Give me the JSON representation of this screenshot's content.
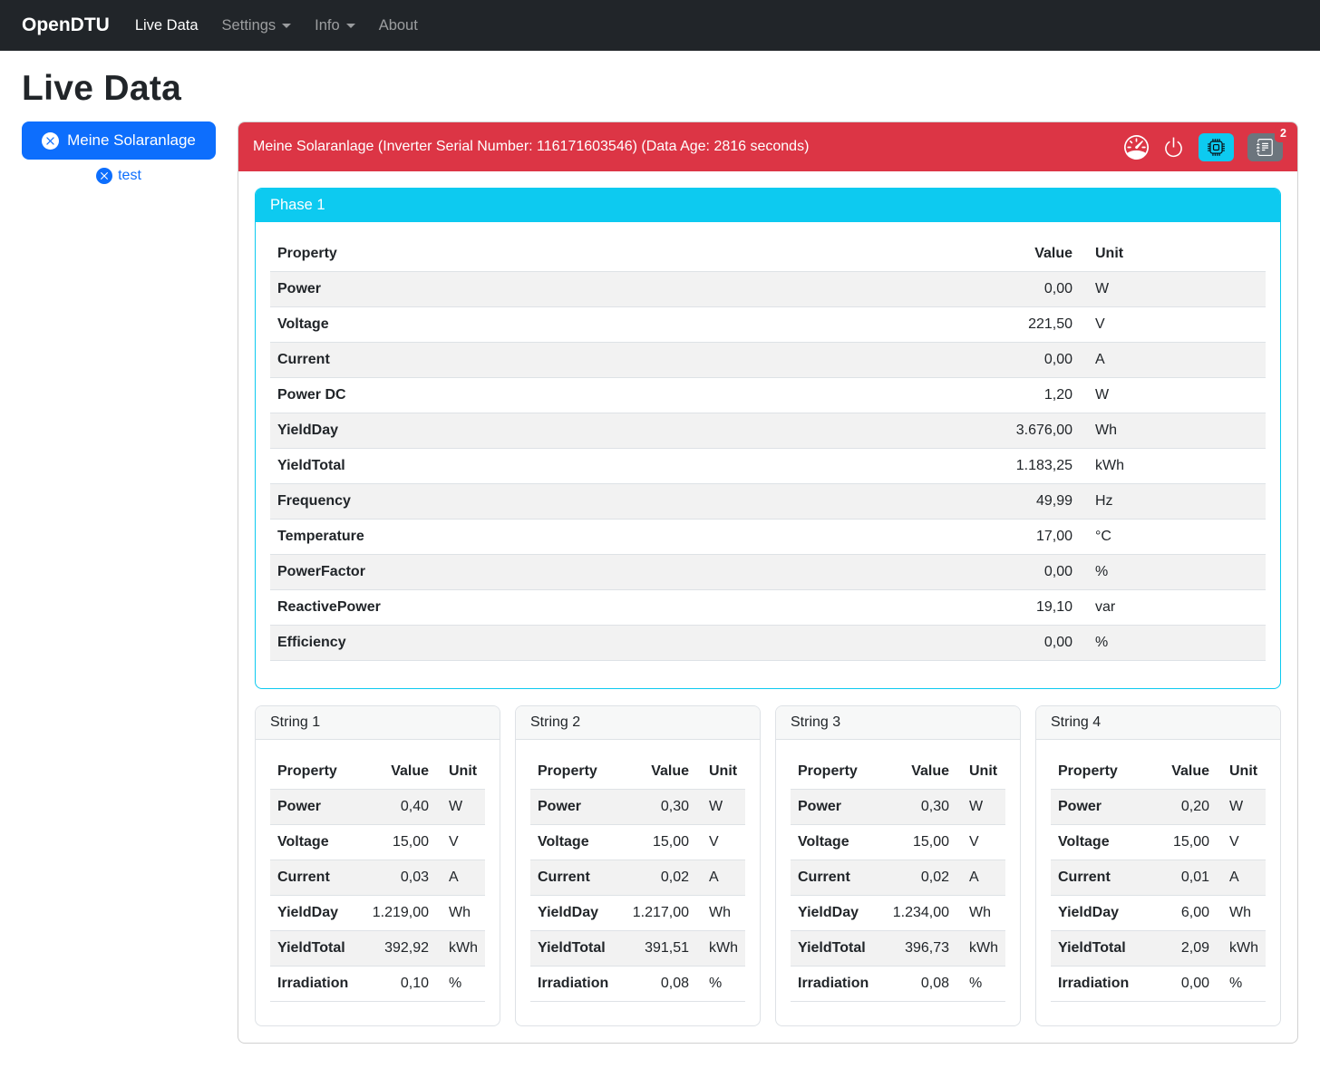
{
  "navbar": {
    "brand": "OpenDTU",
    "live_data": "Live Data",
    "settings": "Settings",
    "info": "Info",
    "about": "About"
  },
  "page": {
    "title": "Live Data"
  },
  "sidebar": {
    "inverter_button_label": "Meine Solaranlage",
    "test_link_label": "test"
  },
  "inverter": {
    "header": "Meine Solaranlage (Inverter Serial Number: 116171603546) (Data Age: 2816 seconds)",
    "event_count": "2"
  },
  "table_headers": {
    "property": "Property",
    "value": "Value",
    "unit": "Unit"
  },
  "phase": {
    "title": "Phase 1",
    "rows": [
      {
        "property": "Power",
        "value": "0,00",
        "unit": "W"
      },
      {
        "property": "Voltage",
        "value": "221,50",
        "unit": "V"
      },
      {
        "property": "Current",
        "value": "0,00",
        "unit": "A"
      },
      {
        "property": "Power DC",
        "value": "1,20",
        "unit": "W"
      },
      {
        "property": "YieldDay",
        "value": "3.676,00",
        "unit": "Wh"
      },
      {
        "property": "YieldTotal",
        "value": "1.183,25",
        "unit": "kWh"
      },
      {
        "property": "Frequency",
        "value": "49,99",
        "unit": "Hz"
      },
      {
        "property": "Temperature",
        "value": "17,00",
        "unit": "°C"
      },
      {
        "property": "PowerFactor",
        "value": "0,00",
        "unit": "%"
      },
      {
        "property": "ReactivePower",
        "value": "19,10",
        "unit": "var"
      },
      {
        "property": "Efficiency",
        "value": "0,00",
        "unit": "%"
      }
    ]
  },
  "strings": [
    {
      "title": "String 1",
      "rows": [
        {
          "property": "Power",
          "value": "0,40",
          "unit": "W"
        },
        {
          "property": "Voltage",
          "value": "15,00",
          "unit": "V"
        },
        {
          "property": "Current",
          "value": "0,03",
          "unit": "A"
        },
        {
          "property": "YieldDay",
          "value": "1.219,00",
          "unit": "Wh"
        },
        {
          "property": "YieldTotal",
          "value": "392,92",
          "unit": "kWh"
        },
        {
          "property": "Irradiation",
          "value": "0,10",
          "unit": "%"
        }
      ]
    },
    {
      "title": "String 2",
      "rows": [
        {
          "property": "Power",
          "value": "0,30",
          "unit": "W"
        },
        {
          "property": "Voltage",
          "value": "15,00",
          "unit": "V"
        },
        {
          "property": "Current",
          "value": "0,02",
          "unit": "A"
        },
        {
          "property": "YieldDay",
          "value": "1.217,00",
          "unit": "Wh"
        },
        {
          "property": "YieldTotal",
          "value": "391,51",
          "unit": "kWh"
        },
        {
          "property": "Irradiation",
          "value": "0,08",
          "unit": "%"
        }
      ]
    },
    {
      "title": "String 3",
      "rows": [
        {
          "property": "Power",
          "value": "0,30",
          "unit": "W"
        },
        {
          "property": "Voltage",
          "value": "15,00",
          "unit": "V"
        },
        {
          "property": "Current",
          "value": "0,02",
          "unit": "A"
        },
        {
          "property": "YieldDay",
          "value": "1.234,00",
          "unit": "Wh"
        },
        {
          "property": "YieldTotal",
          "value": "396,73",
          "unit": "kWh"
        },
        {
          "property": "Irradiation",
          "value": "0,08",
          "unit": "%"
        }
      ]
    },
    {
      "title": "String 4",
      "rows": [
        {
          "property": "Power",
          "value": "0,20",
          "unit": "W"
        },
        {
          "property": "Voltage",
          "value": "15,00",
          "unit": "V"
        },
        {
          "property": "Current",
          "value": "0,01",
          "unit": "A"
        },
        {
          "property": "YieldDay",
          "value": "6,00",
          "unit": "Wh"
        },
        {
          "property": "YieldTotal",
          "value": "2,09",
          "unit": "kWh"
        },
        {
          "property": "Irradiation",
          "value": "0,00",
          "unit": "%"
        }
      ]
    }
  ],
  "icons": {
    "speedometer": "limit-gauge-icon",
    "power": "power-toggle-icon",
    "cpu": "device-info-icon",
    "journal": "event-log-icon",
    "x_circle": "remove-x-circle-icon"
  },
  "colors": {
    "navbar_bg": "#212529",
    "primary": "#0d6efd",
    "danger": "#dc3545",
    "info": "#0dcaf0",
    "secondary": "#6c757d",
    "border": "#dee2e6"
  }
}
